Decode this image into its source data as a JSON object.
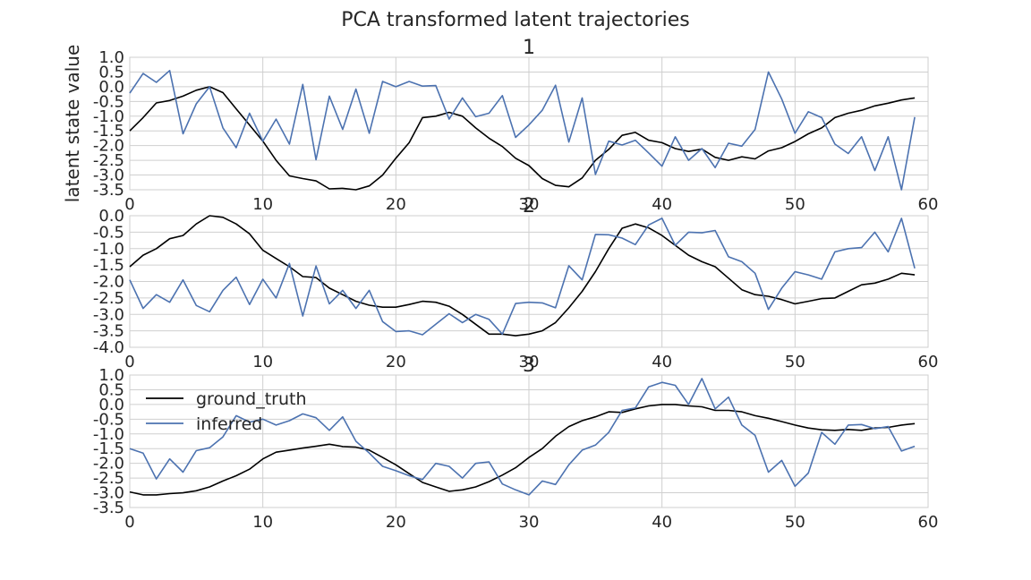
{
  "figure_title": "PCA transformed latent trajectories",
  "colors": {
    "ground_truth": "#000000",
    "inferred": "#4c72b0",
    "grid": "#cfcfcf"
  },
  "chart_data": [
    {
      "type": "line",
      "title": "1",
      "xlabel": "",
      "ylabel": "latent state value",
      "xlim": [
        0,
        60
      ],
      "ylim": [
        -3.5,
        1.0
      ],
      "xticks": [
        0,
        10,
        20,
        30,
        40,
        50,
        60
      ],
      "yticks": [
        -3.5,
        -3.0,
        -2.5,
        -2.0,
        -1.5,
        -1.0,
        -0.5,
        0.0,
        0.5,
        1.0
      ],
      "grid": true,
      "legend": null,
      "x": [
        0,
        1,
        2,
        3,
        4,
        5,
        6,
        7,
        8,
        9,
        10,
        11,
        12,
        13,
        14,
        15,
        16,
        17,
        18,
        19,
        20,
        21,
        22,
        23,
        24,
        25,
        26,
        27,
        28,
        29,
        30,
        31,
        32,
        33,
        34,
        35,
        36,
        37,
        38,
        39,
        40,
        41,
        42,
        43,
        44,
        45,
        46,
        47,
        48,
        49,
        50,
        51,
        52,
        53,
        54,
        55,
        56,
        57,
        58,
        59
      ],
      "series": [
        {
          "name": "ground_truth",
          "values": [
            -1.5,
            -1.05,
            -0.55,
            -0.47,
            -0.32,
            -0.12,
            0.0,
            -0.2,
            -0.75,
            -1.3,
            -1.85,
            -2.5,
            -3.03,
            -3.12,
            -3.2,
            -3.47,
            -3.45,
            -3.5,
            -3.37,
            -3.0,
            -2.43,
            -1.9,
            -1.05,
            -1.0,
            -0.87,
            -1.0,
            -1.4,
            -1.75,
            -2.03,
            -2.43,
            -2.68,
            -3.12,
            -3.35,
            -3.4,
            -3.1,
            -2.5,
            -2.13,
            -1.65,
            -1.55,
            -1.82,
            -1.9,
            -2.1,
            -2.2,
            -2.12,
            -2.4,
            -2.5,
            -2.38,
            -2.45,
            -2.18,
            -2.07,
            -1.86,
            -1.6,
            -1.4,
            -1.05,
            -0.9,
            -0.8,
            -0.65,
            -0.56,
            -0.45,
            -0.38
          ]
        },
        {
          "name": "inferred",
          "values": [
            -0.22,
            0.45,
            0.15,
            0.55,
            -1.6,
            -0.58,
            0.0,
            -1.4,
            -2.07,
            -0.9,
            -1.85,
            -1.1,
            -1.95,
            0.08,
            -2.48,
            -0.32,
            -1.45,
            -0.08,
            -1.58,
            0.18,
            0.0,
            0.18,
            0.02,
            0.04,
            -1.1,
            -0.38,
            -1.02,
            -0.9,
            -0.3,
            -1.72,
            -1.3,
            -0.8,
            0.05,
            -1.88,
            -0.38,
            -2.98,
            -1.85,
            -1.98,
            -1.82,
            -2.25,
            -2.7,
            -1.7,
            -2.5,
            -2.1,
            -2.75,
            -1.92,
            -2.02,
            -1.45,
            0.5,
            -0.42,
            -1.58,
            -0.85,
            -1.05,
            -1.95,
            -2.27,
            -1.7,
            -2.85,
            -1.7,
            -3.5,
            -1.03
          ]
        }
      ]
    },
    {
      "type": "line",
      "title": "2",
      "xlabel": "",
      "ylabel": "",
      "xlim": [
        0,
        60
      ],
      "ylim": [
        -4.0,
        0.0
      ],
      "xticks": [
        0,
        10,
        20,
        30,
        40,
        50,
        60
      ],
      "yticks": [
        -4.0,
        -3.5,
        -3.0,
        -2.5,
        -2.0,
        -1.5,
        -1.0,
        -0.5,
        0.0
      ],
      "grid": true,
      "legend": null,
      "x": [
        0,
        1,
        2,
        3,
        4,
        5,
        6,
        7,
        8,
        9,
        10,
        11,
        12,
        13,
        14,
        15,
        16,
        17,
        18,
        19,
        20,
        21,
        22,
        23,
        24,
        25,
        26,
        27,
        28,
        29,
        30,
        31,
        32,
        33,
        34,
        35,
        36,
        37,
        38,
        39,
        40,
        41,
        42,
        43,
        44,
        45,
        46,
        47,
        48,
        49,
        50,
        51,
        52,
        53,
        54,
        55,
        56,
        57,
        58,
        59
      ],
      "series": [
        {
          "name": "ground_truth",
          "values": [
            -1.55,
            -1.2,
            -1.0,
            -0.7,
            -0.6,
            -0.25,
            0.0,
            -0.05,
            -0.25,
            -0.55,
            -1.05,
            -1.3,
            -1.55,
            -1.85,
            -1.88,
            -2.2,
            -2.4,
            -2.6,
            -2.72,
            -2.78,
            -2.78,
            -2.7,
            -2.6,
            -2.63,
            -2.75,
            -3.0,
            -3.3,
            -3.6,
            -3.6,
            -3.65,
            -3.6,
            -3.5,
            -3.25,
            -2.8,
            -2.3,
            -1.7,
            -1.0,
            -0.38,
            -0.25,
            -0.37,
            -0.6,
            -0.9,
            -1.2,
            -1.4,
            -1.55,
            -1.9,
            -2.25,
            -2.4,
            -2.45,
            -2.55,
            -2.68,
            -2.6,
            -2.52,
            -2.5,
            -2.3,
            -2.1,
            -2.05,
            -1.93,
            -1.75,
            -1.8
          ]
        },
        {
          "name": "inferred",
          "values": [
            -1.95,
            -2.82,
            -2.4,
            -2.63,
            -1.95,
            -2.73,
            -2.92,
            -2.27,
            -1.87,
            -2.7,
            -1.93,
            -2.5,
            -1.45,
            -3.05,
            -1.53,
            -2.68,
            -2.27,
            -2.82,
            -2.27,
            -3.22,
            -3.52,
            -3.5,
            -3.62,
            -3.3,
            -2.98,
            -3.25,
            -3.0,
            -3.15,
            -3.6,
            -2.67,
            -2.63,
            -2.65,
            -2.8,
            -1.52,
            -1.95,
            -0.57,
            -0.58,
            -0.68,
            -0.88,
            -0.28,
            -0.08,
            -0.9,
            -0.5,
            -0.52,
            -0.45,
            -1.25,
            -1.4,
            -1.75,
            -2.85,
            -2.2,
            -1.7,
            -1.8,
            -1.93,
            -1.1,
            -1.0,
            -0.97,
            -0.5,
            -1.1,
            -0.08,
            -1.6
          ]
        }
      ]
    },
    {
      "type": "line",
      "title": "3",
      "xlabel": "",
      "ylabel": "",
      "xlim": [
        0,
        60
      ],
      "ylim": [
        -3.5,
        1.0
      ],
      "xticks": [
        0,
        10,
        20,
        30,
        40,
        50,
        60
      ],
      "yticks": [
        -3.5,
        -3.0,
        -2.5,
        -2.0,
        -1.5,
        -1.0,
        -0.5,
        0.0,
        0.5,
        1.0
      ],
      "grid": true,
      "legend": {
        "placement": "upper-left",
        "entries": [
          "ground_truth",
          "inferred"
        ]
      },
      "x": [
        0,
        1,
        2,
        3,
        4,
        5,
        6,
        7,
        8,
        9,
        10,
        11,
        12,
        13,
        14,
        15,
        16,
        17,
        18,
        19,
        20,
        21,
        22,
        23,
        24,
        25,
        26,
        27,
        28,
        29,
        30,
        31,
        32,
        33,
        34,
        35,
        36,
        37,
        38,
        39,
        40,
        41,
        42,
        43,
        44,
        45,
        46,
        47,
        48,
        49,
        50,
        51,
        52,
        53,
        54,
        55,
        56,
        57,
        58,
        59
      ],
      "series": [
        {
          "name": "ground_truth",
          "values": [
            -2.97,
            -3.07,
            -3.07,
            -3.03,
            -3.0,
            -2.93,
            -2.8,
            -2.6,
            -2.42,
            -2.2,
            -1.85,
            -1.62,
            -1.55,
            -1.48,
            -1.42,
            -1.35,
            -1.43,
            -1.45,
            -1.55,
            -1.8,
            -2.05,
            -2.35,
            -2.65,
            -2.8,
            -2.95,
            -2.9,
            -2.8,
            -2.62,
            -2.4,
            -2.15,
            -1.8,
            -1.5,
            -1.08,
            -0.75,
            -0.55,
            -0.42,
            -0.25,
            -0.27,
            -0.15,
            -0.05,
            0.0,
            0.0,
            -0.05,
            -0.08,
            -0.2,
            -0.2,
            -0.25,
            -0.38,
            -0.47,
            -0.58,
            -0.7,
            -0.8,
            -0.86,
            -0.88,
            -0.85,
            -0.88,
            -0.8,
            -0.78,
            -0.7,
            -0.65
          ]
        },
        {
          "name": "inferred",
          "values": [
            -1.5,
            -1.65,
            -2.53,
            -1.85,
            -2.3,
            -1.57,
            -1.47,
            -1.1,
            -0.38,
            -0.6,
            -0.5,
            -0.7,
            -0.55,
            -0.32,
            -0.45,
            -0.88,
            -0.42,
            -1.25,
            -1.65,
            -2.1,
            -2.25,
            -2.42,
            -2.55,
            -2.0,
            -2.1,
            -2.5,
            -2.0,
            -1.95,
            -2.7,
            -2.9,
            -3.07,
            -2.6,
            -2.72,
            -2.05,
            -1.55,
            -1.38,
            -0.95,
            -0.2,
            -0.12,
            0.6,
            0.75,
            0.65,
            0.0,
            0.88,
            -0.15,
            0.25,
            -0.7,
            -1.05,
            -2.3,
            -1.9,
            -2.78,
            -2.33,
            -0.95,
            -1.35,
            -0.7,
            -0.68,
            -0.82,
            -0.75,
            -1.58,
            -1.42
          ]
        }
      ]
    }
  ]
}
